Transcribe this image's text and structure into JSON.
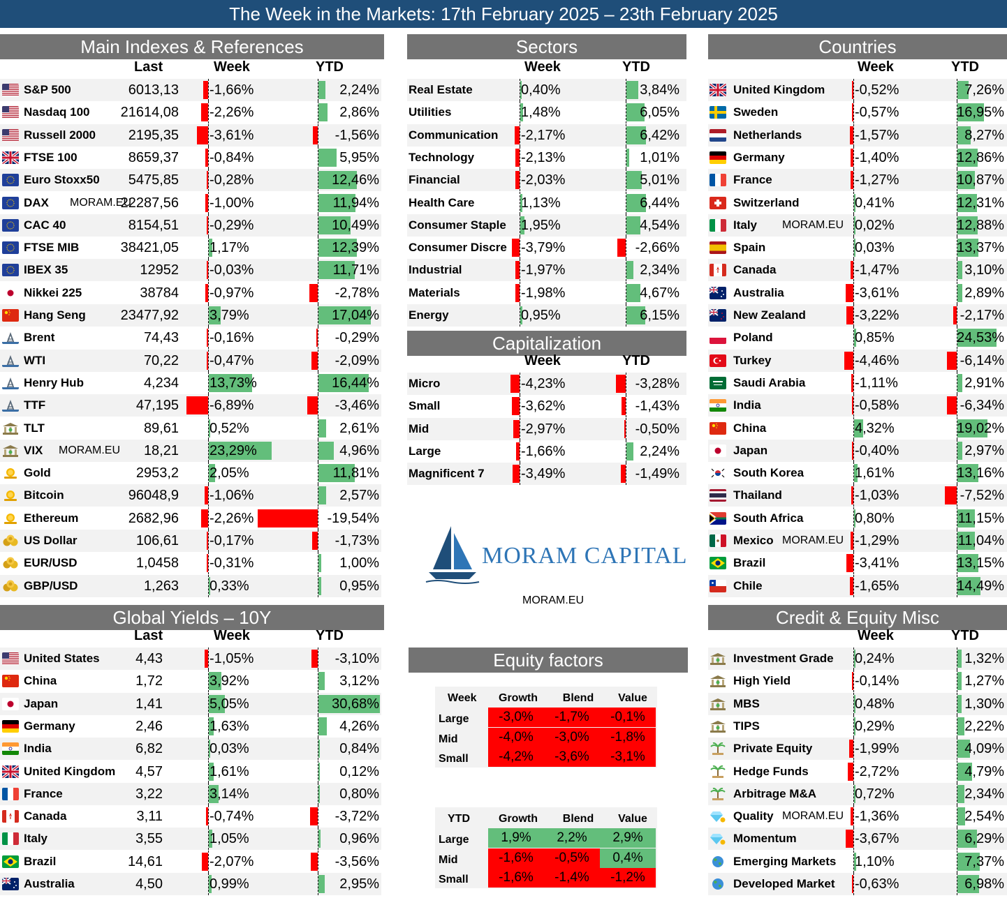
{
  "title": "The Week in the Markets: 17th February  2025 – 23th February 2025",
  "watermark": "MORAM.EU",
  "colors": {
    "positive": "#63be7b",
    "negative": "#ff0000",
    "header_bg": "#737373",
    "banner_bg": "#1f4e79"
  },
  "logo": {
    "text": "MORAM CAPITAL",
    "url": "MORAM.EU"
  },
  "chart_data": [
    {
      "type": "table",
      "id": "main",
      "title": "Main Indexes & References",
      "columns": [
        "Last",
        "Week",
        "YTD"
      ],
      "bar_scale": {
        "week": 20,
        "ytd": 20
      },
      "rows": [
        {
          "name": "S&P 500",
          "icon": "us-flag-icon",
          "last": "6013,13",
          "week": -1.66,
          "ytd": 2.24
        },
        {
          "name": "Nasdaq 100",
          "icon": "us-flag-icon",
          "last": "21614,08",
          "week": -2.26,
          "ytd": 2.86
        },
        {
          "name": "Russell 2000",
          "icon": "us-flag-icon",
          "last": "2195,35",
          "week": -3.61,
          "ytd": -1.56
        },
        {
          "name": "FTSE 100",
          "icon": "uk-flag-icon",
          "last": "8659,37",
          "week": -0.84,
          "ytd": 5.95
        },
        {
          "name": "Euro Stoxx50",
          "icon": "eu-flag-icon",
          "last": "5475,85",
          "week": -0.28,
          "ytd": 12.46
        },
        {
          "name": "DAX",
          "icon": "eu-flag-icon",
          "tag": "MORAM.EU",
          "last": "22287,56",
          "week": -1.0,
          "ytd": 11.94
        },
        {
          "name": "CAC 40",
          "icon": "eu-flag-icon",
          "last": "8154,51",
          "week": -0.29,
          "ytd": 10.49
        },
        {
          "name": "FTSE MIB",
          "icon": "eu-flag-icon",
          "last": "38421,05",
          "week": 1.17,
          "ytd": 12.39
        },
        {
          "name": "IBEX 35",
          "icon": "eu-flag-icon",
          "last": "12952",
          "week": -0.03,
          "ytd": 11.71
        },
        {
          "name": "Nikkei 225",
          "icon": "japan-flag-icon",
          "last": "38784",
          "week": -0.97,
          "ytd": -2.78
        },
        {
          "name": "Hang Seng",
          "icon": "china-flag-icon",
          "last": "23477,92",
          "week": 3.79,
          "ytd": 17.04
        },
        {
          "name": "Brent",
          "icon": "oil-rig-icon",
          "last": "74,43",
          "week": -0.16,
          "ytd": -0.29
        },
        {
          "name": "WTI",
          "icon": "oil-rig-icon",
          "last": "70,22",
          "week": -0.47,
          "ytd": -2.09
        },
        {
          "name": "Henry Hub",
          "icon": "oil-rig-icon",
          "last": "4,234",
          "week": 13.73,
          "ytd": 16.44
        },
        {
          "name": "TTF",
          "icon": "oil-rig-icon",
          "last": "47,195",
          "week": -6.89,
          "ytd": -3.46
        },
        {
          "name": "TLT",
          "icon": "bank-icon",
          "last": "89,61",
          "week": 0.52,
          "ytd": 2.61
        },
        {
          "name": "VIX",
          "icon": "bank-icon",
          "tag": "MORAM.EU",
          "last": "18,21",
          "week": 23.29,
          "ytd": 4.96
        },
        {
          "name": "Gold",
          "icon": "coin-icon",
          "last": "2953,2",
          "week": 2.05,
          "ytd": 11.81
        },
        {
          "name": "Bitcoin",
          "icon": "coin-icon",
          "last": "96048,9",
          "week": -1.06,
          "ytd": 2.57
        },
        {
          "name": "Ethereum",
          "icon": "coin-icon",
          "last": "2682,96",
          "week": -2.26,
          "ytd": -19.54
        },
        {
          "name": "US Dollar",
          "icon": "coins-icon",
          "last": "106,61",
          "week": -0.17,
          "ytd": -1.73
        },
        {
          "name": "EUR/USD",
          "icon": "coins-icon",
          "last": "1,0458",
          "week": -0.31,
          "ytd": 1.0
        },
        {
          "name": "GBP/USD",
          "icon": "coins-icon",
          "last": "1,263",
          "week": 0.33,
          "ytd": 0.95
        }
      ]
    },
    {
      "type": "table",
      "id": "sectors",
      "title": "Sectors",
      "columns": [
        "Week",
        "YTD"
      ],
      "bar_scale": {
        "week": 10,
        "ytd": 16
      },
      "rows": [
        {
          "name": "Real Estate",
          "week": 0.4,
          "ytd": 3.84
        },
        {
          "name": "Utilities",
          "week": 1.48,
          "ytd": 6.05
        },
        {
          "name": "Communication",
          "week": -2.17,
          "ytd": 6.42
        },
        {
          "name": "Technology",
          "week": -2.13,
          "ytd": 1.01
        },
        {
          "name": "Financial",
          "week": -2.03,
          "ytd": 5.01
        },
        {
          "name": "Health Care",
          "week": 1.13,
          "ytd": 6.44
        },
        {
          "name": "Consumer Staple",
          "week": 1.95,
          "ytd": 4.54
        },
        {
          "name": "Consumer Discre",
          "week": -3.79,
          "ytd": -2.66
        },
        {
          "name": "Industrial",
          "week": -1.97,
          "ytd": 2.34
        },
        {
          "name": "Materials",
          "week": -1.98,
          "ytd": 4.67
        },
        {
          "name": "Energy",
          "week": 0.95,
          "ytd": 6.15
        }
      ]
    },
    {
      "type": "table",
      "id": "capitalization",
      "title": "Capitalization",
      "columns": [
        "Week",
        "YTD"
      ],
      "bar_scale": {
        "week": 10,
        "ytd": 16
      },
      "rows": [
        {
          "name": "Micro",
          "week": -4.23,
          "ytd": -3.28
        },
        {
          "name": "Small",
          "week": -3.62,
          "ytd": -1.43
        },
        {
          "name": "Mid",
          "week": -2.97,
          "ytd": -0.5
        },
        {
          "name": "Large",
          "week": -1.66,
          "ytd": 2.24
        },
        {
          "name": "Magnificent 7",
          "week": -3.49,
          "ytd": -1.49
        }
      ]
    },
    {
      "type": "table",
      "id": "countries",
      "title": "Countries",
      "columns": [
        "Week",
        "YTD"
      ],
      "bar_scale": {
        "week": 10,
        "ytd": 30
      },
      "rows": [
        {
          "name": "United Kingdom",
          "icon": "uk-flag-icon",
          "week": -0.52,
          "ytd": 7.26
        },
        {
          "name": "Sweden",
          "icon": "sweden-flag-icon",
          "week": -0.57,
          "ytd": 16.95
        },
        {
          "name": "Netherlands",
          "icon": "netherlands-flag-icon",
          "week": -1.57,
          "ytd": 8.27
        },
        {
          "name": "Germany",
          "icon": "germany-flag-icon",
          "week": -1.4,
          "ytd": 12.86
        },
        {
          "name": "France",
          "icon": "france-flag-icon",
          "week": -1.27,
          "ytd": 10.87
        },
        {
          "name": "Switzerland",
          "icon": "switzerland-flag-icon",
          "week": 0.41,
          "ytd": 12.31
        },
        {
          "name": "Italy",
          "icon": "italy-flag-icon",
          "tag": "MORAM.EU",
          "week": 0.02,
          "ytd": 12.88
        },
        {
          "name": "Spain",
          "icon": "spain-flag-icon",
          "week": 0.03,
          "ytd": 13.37
        },
        {
          "name": "Canada",
          "icon": "canada-flag-icon",
          "week": -1.47,
          "ytd": 3.1
        },
        {
          "name": "Australia",
          "icon": "australia-flag-icon",
          "week": -3.61,
          "ytd": 2.89
        },
        {
          "name": "New Zealand",
          "icon": "new-zealand-flag-icon",
          "week": -3.22,
          "ytd": -2.17
        },
        {
          "name": "Poland",
          "icon": "poland-flag-icon",
          "week": 0.85,
          "ytd": 24.53
        },
        {
          "name": "Turkey",
          "icon": "turkey-flag-icon",
          "week": -4.46,
          "ytd": -6.14
        },
        {
          "name": "Saudi Arabia",
          "icon": "saudi-arabia-flag-icon",
          "week": -1.11,
          "ytd": 2.91
        },
        {
          "name": "India",
          "icon": "india-flag-icon",
          "week": -0.58,
          "ytd": -6.34
        },
        {
          "name": "China",
          "icon": "china-flag-icon",
          "week": 4.32,
          "ytd": 19.02
        },
        {
          "name": "Japan",
          "icon": "japan-flag-icon",
          "week": -0.4,
          "ytd": 2.97
        },
        {
          "name": "South Korea",
          "icon": "south-korea-flag-icon",
          "week": 1.61,
          "ytd": 13.16
        },
        {
          "name": "Thailand",
          "icon": "thailand-flag-icon",
          "week": -1.03,
          "ytd": -7.52
        },
        {
          "name": "South Africa",
          "icon": "south-africa-flag-icon",
          "week": 0.8,
          "ytd": 11.15
        },
        {
          "name": "Mexico",
          "icon": "mexico-flag-icon",
          "tag": "MORAM.EU",
          "week": -1.29,
          "ytd": 11.04
        },
        {
          "name": "Brazil",
          "icon": "brazil-flag-icon",
          "week": -3.41,
          "ytd": 13.15
        },
        {
          "name": "Chile",
          "icon": "chile-flag-icon",
          "week": -1.65,
          "ytd": 14.49
        }
      ]
    },
    {
      "type": "table",
      "id": "yields",
      "title": "Global Yields – 10Y",
      "columns": [
        "Last",
        "Week",
        "YTD"
      ],
      "bar_scale": {
        "week": 20,
        "ytd": 30
      },
      "rows": [
        {
          "name": "United States",
          "icon": "us-flag-icon",
          "last": "4,43",
          "week": -1.05,
          "ytd": -3.1
        },
        {
          "name": "China",
          "icon": "china-flag-icon",
          "last": "1,72",
          "week": 3.92,
          "ytd": 3.12
        },
        {
          "name": "Japan",
          "icon": "japan-flag-icon",
          "last": "1,41",
          "week": 5.05,
          "ytd": 30.68
        },
        {
          "name": "Germany",
          "icon": "germany-flag-icon",
          "last": "2,46",
          "week": 1.63,
          "ytd": 4.26
        },
        {
          "name": "India",
          "icon": "india-flag-icon",
          "last": "6,82",
          "week": 0.03,
          "ytd": 0.84
        },
        {
          "name": "United Kingdom",
          "icon": "uk-flag-icon",
          "last": "4,57",
          "week": 1.61,
          "ytd": 0.12
        },
        {
          "name": "France",
          "icon": "france-flag-icon",
          "last": "3,22",
          "week": 3.14,
          "ytd": 0.8
        },
        {
          "name": "Canada",
          "icon": "canada-flag-icon",
          "last": "3,11",
          "week": -0.74,
          "ytd": -3.72
        },
        {
          "name": "Italy",
          "icon": "italy-flag-icon",
          "last": "3,55",
          "week": 1.05,
          "ytd": 0.96
        },
        {
          "name": "Brazil",
          "icon": "brazil-flag-icon",
          "last": "14,61",
          "week": -2.07,
          "ytd": -3.56
        },
        {
          "name": "Australia",
          "icon": "australia-flag-icon",
          "last": "4,50",
          "week": 0.99,
          "ytd": 2.95
        }
      ]
    },
    {
      "type": "table",
      "id": "credit",
      "title": "Credit & Equity Misc",
      "columns": [
        "Week",
        "YTD"
      ],
      "bar_scale": {
        "week": 10,
        "ytd": 16
      },
      "rows": [
        {
          "name": "Investment Grade",
          "icon": "bank-icon",
          "week": 0.24,
          "ytd": 1.32
        },
        {
          "name": "High Yield",
          "icon": "bank-icon",
          "week": -0.14,
          "ytd": 1.27
        },
        {
          "name": "MBS",
          "icon": "bank-icon",
          "week": 0.48,
          "ytd": 1.3
        },
        {
          "name": "TIPS",
          "icon": "bank-icon",
          "week": 0.29,
          "ytd": 2.22
        },
        {
          "name": "Private Equity",
          "icon": "palm-tree-icon",
          "week": -1.99,
          "ytd": 4.09
        },
        {
          "name": "Hedge Funds",
          "icon": "palm-tree-icon",
          "week": -2.72,
          "ytd": 4.79
        },
        {
          "name": "Arbitrage M&A",
          "icon": "palm-tree-icon",
          "week": 0.72,
          "ytd": 2.34
        },
        {
          "name": "Quality",
          "icon": "diamond-icon",
          "tag": "MORAM.EU",
          "week": -1.36,
          "ytd": 2.54
        },
        {
          "name": "Momentum",
          "icon": "diamond-icon",
          "week": -3.67,
          "ytd": 6.29
        },
        {
          "name": "Emerging Markets",
          "icon": "globe-icon",
          "week": 1.1,
          "ytd": 7.37
        },
        {
          "name": "Developed Market",
          "icon": "globe-icon",
          "week": -0.63,
          "ytd": 6.98
        }
      ]
    },
    {
      "type": "heatmap",
      "id": "equity_factors",
      "title": "Equity factors",
      "grids": [
        {
          "label": "Week",
          "columns": [
            "Growth",
            "Blend",
            "Value"
          ],
          "rows": [
            "Large",
            "Mid",
            "Small"
          ],
          "values": [
            [
              "-3,0%",
              "-1,7%",
              "-0,1%"
            ],
            [
              "-4,0%",
              "-3,0%",
              "-1,8%"
            ],
            [
              "-4,2%",
              "-3,6%",
              "-3,1%"
            ]
          ],
          "signs": [
            [
              -1,
              -1,
              -1
            ],
            [
              -1,
              -1,
              -1
            ],
            [
              -1,
              -1,
              -1
            ]
          ]
        },
        {
          "label": "YTD",
          "columns": [
            "Growth",
            "Blend",
            "Value"
          ],
          "rows": [
            "Large",
            "Mid",
            "Small"
          ],
          "values": [
            [
              "1,9%",
              "2,2%",
              "2,9%"
            ],
            [
              "-1,6%",
              "-0,5%",
              "0,4%"
            ],
            [
              "-1,6%",
              "-1,4%",
              "-1,2%"
            ]
          ],
          "signs": [
            [
              1,
              1,
              1
            ],
            [
              -1,
              -1,
              1
            ],
            [
              -1,
              -1,
              -1
            ]
          ]
        }
      ]
    }
  ]
}
